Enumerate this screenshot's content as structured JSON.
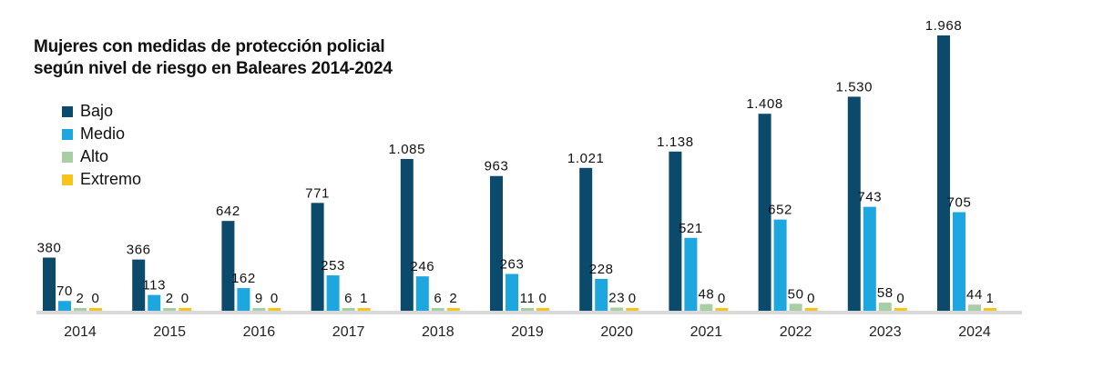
{
  "chart_data": {
    "type": "bar",
    "title_lines": [
      "Mujeres con medidas de protección policial",
      "según nivel de riesgo en Baleares 2014-2024"
    ],
    "categories": [
      "2014",
      "2015",
      "2016",
      "2017",
      "2018",
      "2019",
      "2020",
      "2021",
      "2022",
      "2023",
      "2024"
    ],
    "series": [
      {
        "name": "Bajo",
        "color": "#0b4a6b",
        "values": [
          380,
          366,
          642,
          771,
          1085,
          963,
          1021,
          1138,
          1408,
          1530,
          1968
        ],
        "labels": [
          "380",
          "366",
          "642",
          "771",
          "1.085",
          "963",
          "1.021",
          "1.138",
          "1.408",
          "1.530",
          "1.968"
        ]
      },
      {
        "name": "Medio",
        "color": "#1ea6df",
        "values": [
          70,
          113,
          162,
          253,
          246,
          263,
          228,
          521,
          652,
          743,
          705
        ],
        "labels": [
          "70",
          "113",
          "162",
          "253",
          "246",
          "263",
          "228",
          "521",
          "652",
          "743",
          "705"
        ]
      },
      {
        "name": "Alto",
        "color": "#a8cfa4",
        "values": [
          2,
          2,
          9,
          6,
          6,
          11,
          23,
          48,
          50,
          58,
          44
        ],
        "labels": [
          "2",
          "2",
          "9",
          "6",
          "6",
          "11",
          "23",
          "48",
          "50",
          "58",
          "44"
        ]
      },
      {
        "name": "Extremo",
        "color": "#f7c41d",
        "values": [
          0,
          0,
          0,
          1,
          2,
          0,
          0,
          0,
          0,
          0,
          1
        ],
        "labels": [
          "0",
          "0",
          "0",
          "1",
          "2",
          "0",
          "0",
          "0",
          "0",
          "0",
          "1"
        ]
      }
    ],
    "ylim": [
      0,
      2000
    ],
    "legend": "top-left",
    "grid": false,
    "xlabel": "",
    "ylabel": ""
  }
}
